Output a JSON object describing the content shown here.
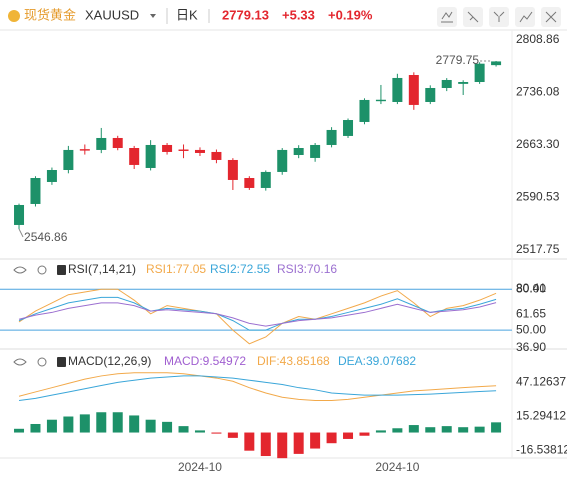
{
  "header": {
    "name": "现货黄金",
    "symbol": "XAUUSD",
    "period": "日K",
    "price": "2779.13",
    "change": "+5.33",
    "change_pct": "+0.19%"
  },
  "chart_data": [
    {
      "type": "candlestick",
      "categories": [
        null,
        null,
        null,
        null,
        null,
        null,
        null,
        null,
        null,
        null,
        null,
        "2024-10",
        null,
        null,
        null,
        null,
        null,
        null,
        null,
        null,
        null,
        null,
        null,
        "2024-10",
        null,
        null,
        null,
        null,
        null,
        null
      ],
      "open": [
        2552.4,
        2581.5,
        2612.0,
        2628.6,
        2657.5,
        2656.4,
        2673.0,
        2659.1,
        2631.4,
        2663.3,
        2657.0,
        2656.4,
        2653.6,
        2642.5,
        2617.5,
        2603.7,
        2625.9,
        2649.4,
        2645.3,
        2663.3,
        2675.8,
        2695.2,
        2724.0,
        2722.9,
        2760.3,
        2722.9,
        2742.3,
        2748.0,
        2750.6,
        2774.0
      ],
      "high": [
        2582.0,
        2620.0,
        2632.0,
        2662.0,
        2664.0,
        2686.9,
        2676.0,
        2662.0,
        2670.0,
        2666.0,
        2664.0,
        2660.0,
        2657.0,
        2645.0,
        2620.0,
        2628.0,
        2659.0,
        2663.0,
        2666.0,
        2688.0,
        2700.0,
        2728.0,
        2746.5,
        2762.0,
        2764.0,
        2746.0,
        2756.0,
        2753.0,
        2778.0,
        2779.75
      ],
      "low": [
        2546.86,
        2578.0,
        2608.0,
        2624.0,
        2650.0,
        2652.0,
        2656.0,
        2630.0,
        2628.0,
        2650.0,
        2645.0,
        2648.0,
        2638.0,
        2600.9,
        2601.0,
        2600.0,
        2622.0,
        2645.0,
        2640.0,
        2660.0,
        2673.0,
        2692.0,
        2720.0,
        2720.0,
        2712.0,
        2720.0,
        2738.0,
        2732.6,
        2748.0,
        2772.0
      ],
      "close": [
        2580.1,
        2617.5,
        2628.6,
        2656.4,
        2655.5,
        2673.0,
        2659.1,
        2635.6,
        2663.3,
        2653.6,
        2655.0,
        2652.2,
        2642.5,
        2614.8,
        2603.7,
        2625.9,
        2656.4,
        2659.1,
        2663.3,
        2684.1,
        2697.9,
        2725.7,
        2726.0,
        2756.2,
        2718.8,
        2742.3,
        2753.4,
        2750.6,
        2776.0,
        2779.13
      ],
      "up_color": "#1d9169",
      "down_color": "#e3262e",
      "ylim": [
        2506.6,
        2822.7
      ],
      "yticks": [
        2808.86,
        2736.08,
        {
          "value": 2663.3,
          "label": "2663.30"
        },
        2590.53,
        2517.75
      ],
      "max_marker": 2779.75,
      "min_marker": 2546.86
    },
    {
      "type": "line",
      "title": "RSI(7,14,21)",
      "series": [
        {
          "name": "RSI1:77.05",
          "color": "#f2a94a",
          "values": [
            56,
            64,
            70,
            76,
            78,
            80,
            80,
            72,
            62,
            68,
            66,
            64,
            62,
            50,
            40,
            45,
            55,
            60,
            58,
            62,
            66,
            70,
            75,
            79,
            70,
            60,
            66,
            68,
            72,
            77.05
          ]
        },
        {
          "name": "RSI2:72.55",
          "color": "#3aa6d9",
          "values": [
            57,
            62,
            66,
            70,
            72,
            74,
            74,
            70,
            64,
            66,
            65,
            64,
            62,
            57,
            50,
            50,
            55,
            58,
            58,
            60,
            63,
            66,
            69,
            73,
            68,
            63,
            65,
            66,
            69,
            72.55
          ]
        },
        {
          "name": "RSI3:70.16",
          "color": "#9b6fd0",
          "values": [
            58,
            61,
            63,
            66,
            68,
            70,
            70,
            68,
            64,
            65,
            64,
            63,
            62,
            59,
            55,
            53,
            55,
            57,
            58,
            59,
            61,
            63,
            66,
            69,
            66,
            63,
            64,
            65,
            67,
            70.16
          ]
        }
      ],
      "ylim": [
        36.9,
        100
      ],
      "levels": [
        {
          "value": 80,
          "label": "80.00"
        },
        {
          "value": 50,
          "label": "50.00"
        }
      ],
      "level_color": "#4aa3df",
      "yticks": [
        80.41,
        61.65,
        {
          "value": 36.9,
          "label": "36.90"
        }
      ]
    },
    {
      "type": "combo",
      "title": "MACD(12,26,9)",
      "series": [
        {
          "name": "MACD:9.54972",
          "kind": "bar",
          "color": "#a05fd0",
          "up_color": "#1d9169",
          "down_color": "#e3262e",
          "values": [
            3.5,
            8,
            12,
            15,
            17,
            19,
            19,
            16,
            12,
            10,
            6,
            2,
            -1,
            -5,
            -17,
            -22,
            -24,
            -20,
            -15,
            -10,
            -6,
            -3,
            2,
            4,
            7,
            5,
            6,
            5,
            5.5,
            9.54972
          ]
        },
        {
          "name": "DIF:43.85168",
          "kind": "line",
          "color": "#f2a94a",
          "values": [
            34,
            38,
            42,
            46,
            50,
            53,
            55,
            56,
            56,
            56,
            55,
            53,
            51,
            48,
            42,
            37,
            33,
            31,
            30,
            30,
            31,
            33,
            35,
            37,
            39,
            40,
            41,
            42,
            43,
            43.85168
          ]
        },
        {
          "name": "DEA:39.07682",
          "kind": "line",
          "color": "#3aa6d9",
          "values": [
            30,
            32,
            35,
            38,
            41,
            44,
            47,
            49,
            51,
            52,
            53,
            53,
            52,
            51,
            49,
            47,
            45,
            42,
            40,
            37,
            36,
            35,
            35,
            35,
            35.5,
            36,
            36.8,
            37.6,
            38.4,
            39.07682
          ]
        }
      ],
      "ylim": [
        -30.4,
        72.6
      ],
      "yticks": [
        47.12637,
        15.29412,
        -16.53812
      ]
    }
  ]
}
